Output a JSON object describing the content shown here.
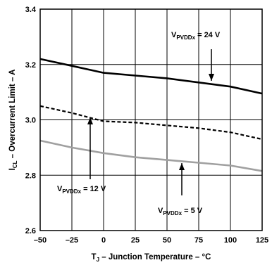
{
  "chart_data": {
    "type": "line",
    "xlabel": {
      "main": "T",
      "sub": "J",
      "rest": " – Junction Temperature – °C"
    },
    "ylabel": {
      "main": "I",
      "sub": "CL",
      "rest": " – Overcurrent Limit – A"
    },
    "xlim": [
      -50,
      125
    ],
    "ylim": [
      2.6,
      3.4
    ],
    "xticks": [
      -50,
      -25,
      0,
      25,
      50,
      75,
      100,
      125
    ],
    "xtick_labels": [
      "–50",
      "–25",
      "0",
      "25",
      "50",
      "75",
      "100",
      "125"
    ],
    "yticks": [
      2.6,
      2.8,
      3.0,
      3.2,
      3.4
    ],
    "ytick_labels": [
      "2.6",
      "2.8",
      "3.0",
      "3.2",
      "3.4"
    ],
    "grid": true,
    "series": [
      {
        "name": {
          "main": "V",
          "sub": "PVDDx",
          "rest": " = 24 V"
        },
        "color": "#000000",
        "style": "solid",
        "x": [
          -50,
          -25,
          0,
          25,
          50,
          75,
          100,
          125
        ],
        "y": [
          3.22,
          3.195,
          3.17,
          3.16,
          3.15,
          3.135,
          3.12,
          3.095
        ]
      },
      {
        "name": {
          "main": "V",
          "sub": "PVDDx",
          "rest": " = 12 V"
        },
        "color": "#000000",
        "style": "dashed",
        "x": [
          -50,
          -25,
          0,
          25,
          50,
          75,
          100,
          125
        ],
        "y": [
          3.05,
          3.025,
          2.995,
          2.99,
          2.98,
          2.97,
          2.955,
          2.93
        ]
      },
      {
        "name": {
          "main": "V",
          "sub": "PVDDx",
          "rest": " = 5 V"
        },
        "color": "#a0a0a0",
        "style": "solid",
        "x": [
          -50,
          -25,
          0,
          25,
          50,
          75,
          100,
          125
        ],
        "y": [
          2.925,
          2.9,
          2.88,
          2.865,
          2.855,
          2.845,
          2.835,
          2.815
        ]
      }
    ]
  }
}
